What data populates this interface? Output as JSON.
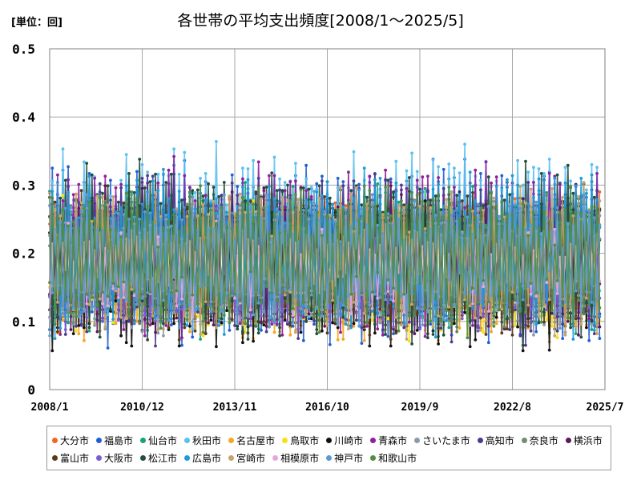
{
  "header": {
    "unit_label": "[単位：回]",
    "title": "各世帯の平均支出頻度[2008/1～2025/5]"
  },
  "chart_data": {
    "type": "line",
    "title": "各世帯の平均支出頻度[2008/1～2025/5]",
    "unit": "[単位：回]",
    "xlabel": "",
    "ylabel": "",
    "x_range": [
      "2008/1",
      "2025/7"
    ],
    "x_ticks": [
      "2008/1",
      "2010/12",
      "2013/11",
      "2016/10",
      "2019/9",
      "2022/8",
      "2025/7"
    ],
    "ylim": [
      0,
      0.5
    ],
    "y_ticks": [
      "0",
      "0.1",
      "0.2",
      "0.3",
      "0.4",
      "0.5"
    ],
    "grid": true,
    "legend_position": "bottom",
    "series": [
      {
        "name": "大分市",
        "color": "#f26522",
        "mean": 0.19,
        "amp": 0.08
      },
      {
        "name": "福島市",
        "color": "#1f5fd6",
        "mean": 0.2,
        "amp": 0.13
      },
      {
        "name": "仙台市",
        "color": "#17a37a",
        "mean": 0.19,
        "amp": 0.1
      },
      {
        "name": "秋田市",
        "color": "#5bc0f0",
        "mean": 0.22,
        "amp": 0.13
      },
      {
        "name": "名古屋市",
        "color": "#f5a623",
        "mean": 0.17,
        "amp": 0.09
      },
      {
        "name": "鳥取市",
        "color": "#f7e017",
        "mean": 0.18,
        "amp": 0.09
      },
      {
        "name": "川崎市",
        "color": "#111111",
        "mean": 0.17,
        "amp": 0.1
      },
      {
        "name": "青森市",
        "color": "#8e1f9e",
        "mean": 0.21,
        "amp": 0.12
      },
      {
        "name": "さいたま市",
        "color": "#8c9aa8",
        "mean": 0.18,
        "amp": 0.09
      },
      {
        "name": "高知市",
        "color": "#4b3b8f",
        "mean": 0.19,
        "amp": 0.11
      },
      {
        "name": "奈良市",
        "color": "#6f8f6f",
        "mean": 0.18,
        "amp": 0.08
      },
      {
        "name": "横浜市",
        "color": "#5a1a5a",
        "mean": 0.19,
        "amp": 0.1
      },
      {
        "name": "富山市",
        "color": "#5a3a1a",
        "mean": 0.18,
        "amp": 0.1
      },
      {
        "name": "大阪市",
        "color": "#7b5cd6",
        "mean": 0.18,
        "amp": 0.08
      },
      {
        "name": "松江市",
        "color": "#1f4f3f",
        "mean": 0.2,
        "amp": 0.12
      },
      {
        "name": "広島市",
        "color": "#1e9bd7",
        "mean": 0.2,
        "amp": 0.11
      },
      {
        "name": "宮崎市",
        "color": "#c8a46a",
        "mean": 0.19,
        "amp": 0.1
      },
      {
        "name": "相模原市",
        "color": "#e6a8d8",
        "mean": 0.18,
        "amp": 0.06
      },
      {
        "name": "神戸市",
        "color": "#5b9bd5",
        "mean": 0.19,
        "amp": 0.09
      },
      {
        "name": "和歌山市",
        "color": "#4f8f3f",
        "mean": 0.19,
        "amp": 0.1
      }
    ]
  }
}
